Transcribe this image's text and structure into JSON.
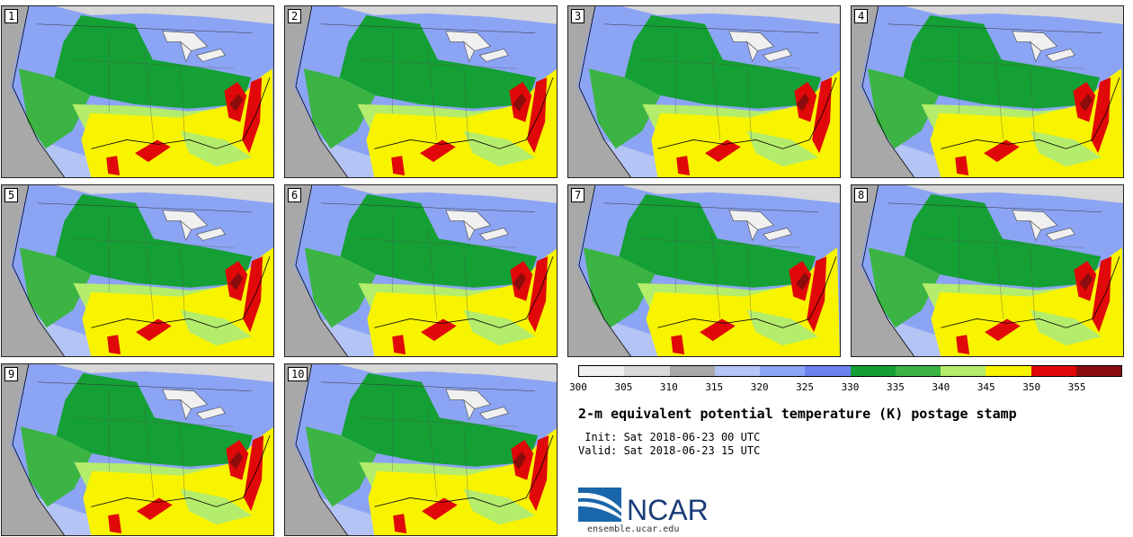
{
  "panels": [
    {
      "label": "1"
    },
    {
      "label": "2"
    },
    {
      "label": "3"
    },
    {
      "label": "4"
    },
    {
      "label": "5"
    },
    {
      "label": "6"
    },
    {
      "label": "7"
    },
    {
      "label": "8"
    },
    {
      "label": "9"
    },
    {
      "label": "10"
    }
  ],
  "colorbar": {
    "colors": [
      "#f0f0f0",
      "#d8d8d8",
      "#a8a8a8",
      "#b4c4f4",
      "#8ca4f4",
      "#6c84f0",
      "#14a034",
      "#3cb444",
      "#b4ec6c",
      "#f8f400",
      "#e00808",
      "#8a0c0c"
    ],
    "tick_labels": [
      "300",
      "305",
      "310",
      "315",
      "320",
      "325",
      "330",
      "335",
      "340",
      "345",
      "350",
      "355"
    ]
  },
  "title": "2-m equivalent potential temperature (K) postage stamp",
  "init": " Init: Sat 2018-06-23 00 UTC",
  "valid": "Valid: Sat 2018-06-23 15 UTC",
  "logo": {
    "text": "NCAR",
    "url": "ensemble.ucar.edu"
  },
  "map_colors": {
    "ocean": "#a8a8a8",
    "land_cool": "#8ca4f4",
    "green": "#14a034",
    "light_green": "#3cb444",
    "lime": "#b4ec6c",
    "yellow": "#f8f400",
    "red": "#e00808",
    "snow": "#f0f0f0"
  }
}
